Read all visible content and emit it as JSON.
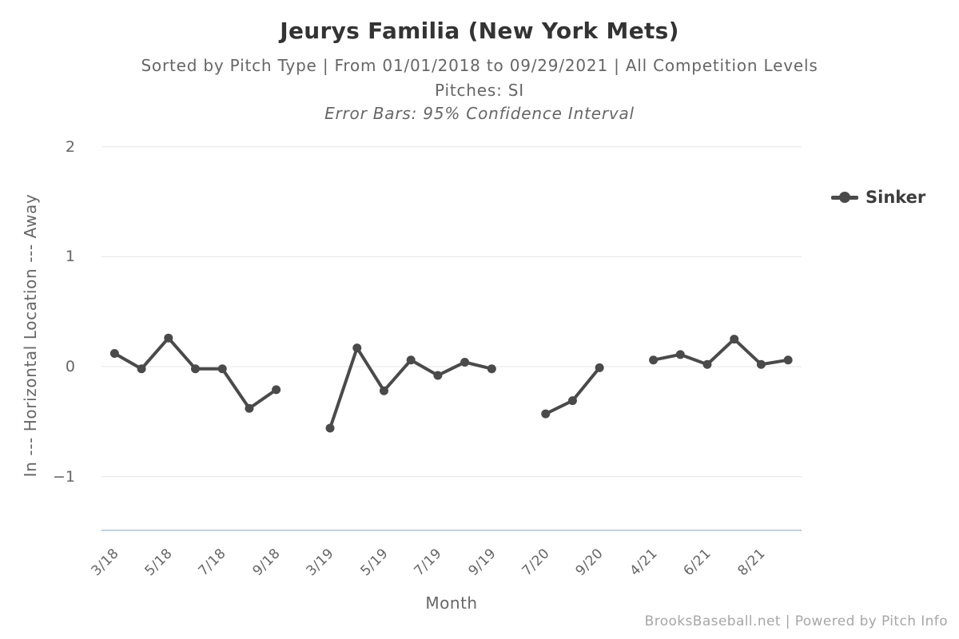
{
  "page": {
    "title": "Jeurys Familia (New York Mets)",
    "subtitle": "Sorted by Pitch Type | From 01/01/2018 to 09/29/2021 | All Competition Levels",
    "subtitle_pitches": "Pitches: SI",
    "subtitle_error_bars": "Error Bars: 95% Confidence Interval",
    "footer": "BrooksBaseball.net | Powered by Pitch Info"
  },
  "colors": {
    "series": "#4a4a4a",
    "gridline": "#e6e6e6",
    "axis_line": "#c0d0e0",
    "title_text": "#333333",
    "subtitle_text": "#666666",
    "tick_text": "#666666",
    "legend_text": "#3d3d3d",
    "footer_text": "#a6a6a6"
  },
  "chart_data": {
    "type": "line",
    "title": "Jeurys Familia (New York Mets)",
    "subtitle_lines": [
      "Sorted by Pitch Type | From 01/01/2018 to 09/29/2021 | All Competition Levels",
      "Pitches: SI",
      "Error Bars: 95% Confidence Interval"
    ],
    "xlabel": "Month",
    "ylabel": "In --- Horizontal Location --- Away",
    "ylim": [
      -1.49,
      2.1
    ],
    "yticks": [
      {
        "value": 2,
        "label": "2"
      },
      {
        "value": 1,
        "label": "1"
      },
      {
        "value": 0,
        "label": "0"
      },
      {
        "value": -1,
        "label": "−1"
      }
    ],
    "grid": true,
    "legend_position": "right",
    "x_slot_count": 26,
    "xticks": [
      {
        "slot": 0,
        "label": "3/18"
      },
      {
        "slot": 2,
        "label": "5/18"
      },
      {
        "slot": 4,
        "label": "7/18"
      },
      {
        "slot": 6,
        "label": "9/18"
      },
      {
        "slot": 8,
        "label": "3/19"
      },
      {
        "slot": 10,
        "label": "5/19"
      },
      {
        "slot": 12,
        "label": "7/19"
      },
      {
        "slot": 14,
        "label": "9/19"
      },
      {
        "slot": 16,
        "label": "7/20"
      },
      {
        "slot": 18,
        "label": "9/20"
      },
      {
        "slot": 20,
        "label": "4/21"
      },
      {
        "slot": 22,
        "label": "6/21"
      },
      {
        "slot": 24,
        "label": "8/21"
      }
    ],
    "series": [
      {
        "name": "Sinker",
        "color": "#4a4a4a",
        "segments": [
          {
            "season": "2018",
            "points": [
              {
                "month": "3/18",
                "slot": 0,
                "value": 0.12
              },
              {
                "month": "4/18",
                "slot": 1,
                "value": -0.02
              },
              {
                "month": "5/18",
                "slot": 2,
                "value": 0.26
              },
              {
                "month": "6/18",
                "slot": 3,
                "value": -0.02
              },
              {
                "month": "7/18",
                "slot": 4,
                "value": -0.02
              },
              {
                "month": "8/18",
                "slot": 5,
                "value": -0.38
              },
              {
                "month": "9/18",
                "slot": 6,
                "value": -0.21
              }
            ]
          },
          {
            "season": "2019",
            "points": [
              {
                "month": "3/19",
                "slot": 8,
                "value": -0.56
              },
              {
                "month": "4/19",
                "slot": 9,
                "value": 0.17
              },
              {
                "month": "5/19",
                "slot": 10,
                "value": -0.22
              },
              {
                "month": "6/19",
                "slot": 11,
                "value": 0.06
              },
              {
                "month": "7/19",
                "slot": 12,
                "value": -0.08
              },
              {
                "month": "8/19",
                "slot": 13,
                "value": 0.04
              },
              {
                "month": "9/19",
                "slot": 14,
                "value": -0.02
              }
            ]
          },
          {
            "season": "2020",
            "points": [
              {
                "month": "7/20",
                "slot": 16,
                "value": -0.43
              },
              {
                "month": "8/20",
                "slot": 17,
                "value": -0.31
              },
              {
                "month": "9/20",
                "slot": 18,
                "value": -0.01
              }
            ]
          },
          {
            "season": "2021",
            "points": [
              {
                "month": "4/21",
                "slot": 20,
                "value": 0.06
              },
              {
                "month": "5/21",
                "slot": 21,
                "value": 0.11
              },
              {
                "month": "6/21",
                "slot": 22,
                "value": 0.02
              },
              {
                "month": "7/21",
                "slot": 23,
                "value": 0.25
              },
              {
                "month": "8/21",
                "slot": 24,
                "value": 0.02
              },
              {
                "month": "9/21",
                "slot": 25,
                "value": 0.06
              }
            ]
          }
        ]
      }
    ],
    "footer": "BrooksBaseball.net | Powered by Pitch Info"
  }
}
